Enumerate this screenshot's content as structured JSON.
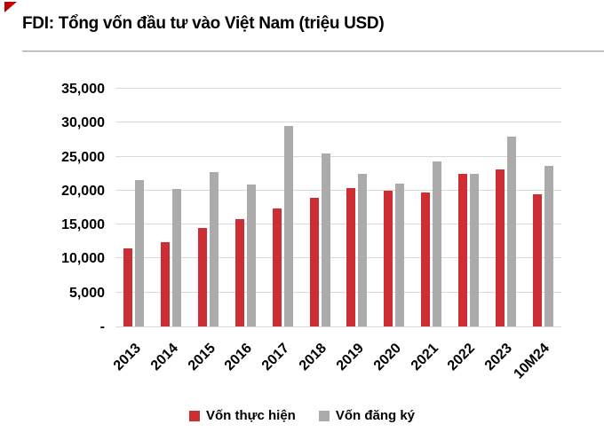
{
  "page": {
    "title": "FDI: Tổng vốn đầu tư vào Việt Nam (triệu USD)"
  },
  "colors": {
    "realized_red": "#cd2e33",
    "registered_gray": "#ababab",
    "gridline": "#d9d9d9",
    "title_rule": "#a3a3a3",
    "corner_mark": "#c00000"
  },
  "chart_data": {
    "type": "bar",
    "title": "FDI: Tổng vốn đầu tư vào Việt Nam (triệu USD)",
    "categories": [
      "2013",
      "2014",
      "2015",
      "2016",
      "2017",
      "2018",
      "2019",
      "2020",
      "2021",
      "2022",
      "2023",
      "10M24"
    ],
    "series": [
      {
        "name": "Vốn thực hiện",
        "color": "#cd2e33",
        "values": [
          11500,
          12400,
          14500,
          15800,
          17400,
          19000,
          20400,
          20000,
          19700,
          22500,
          23100,
          19400
        ]
      },
      {
        "name": "Vốn đăng ký",
        "color": "#ababab",
        "values": [
          21600,
          20200,
          22700,
          20900,
          29500,
          25500,
          22400,
          21000,
          24300,
          22400,
          28000,
          23600
        ]
      }
    ],
    "xlabel": "",
    "ylabel": "",
    "ylim": [
      0,
      35000
    ],
    "ytick_step": 5000,
    "ytick_labels": [
      "-",
      "5,000",
      "10,000",
      "15,000",
      "20,000",
      "25,000",
      "30,000",
      "35,000"
    ],
    "grid": true,
    "legend_position": "bottom"
  }
}
